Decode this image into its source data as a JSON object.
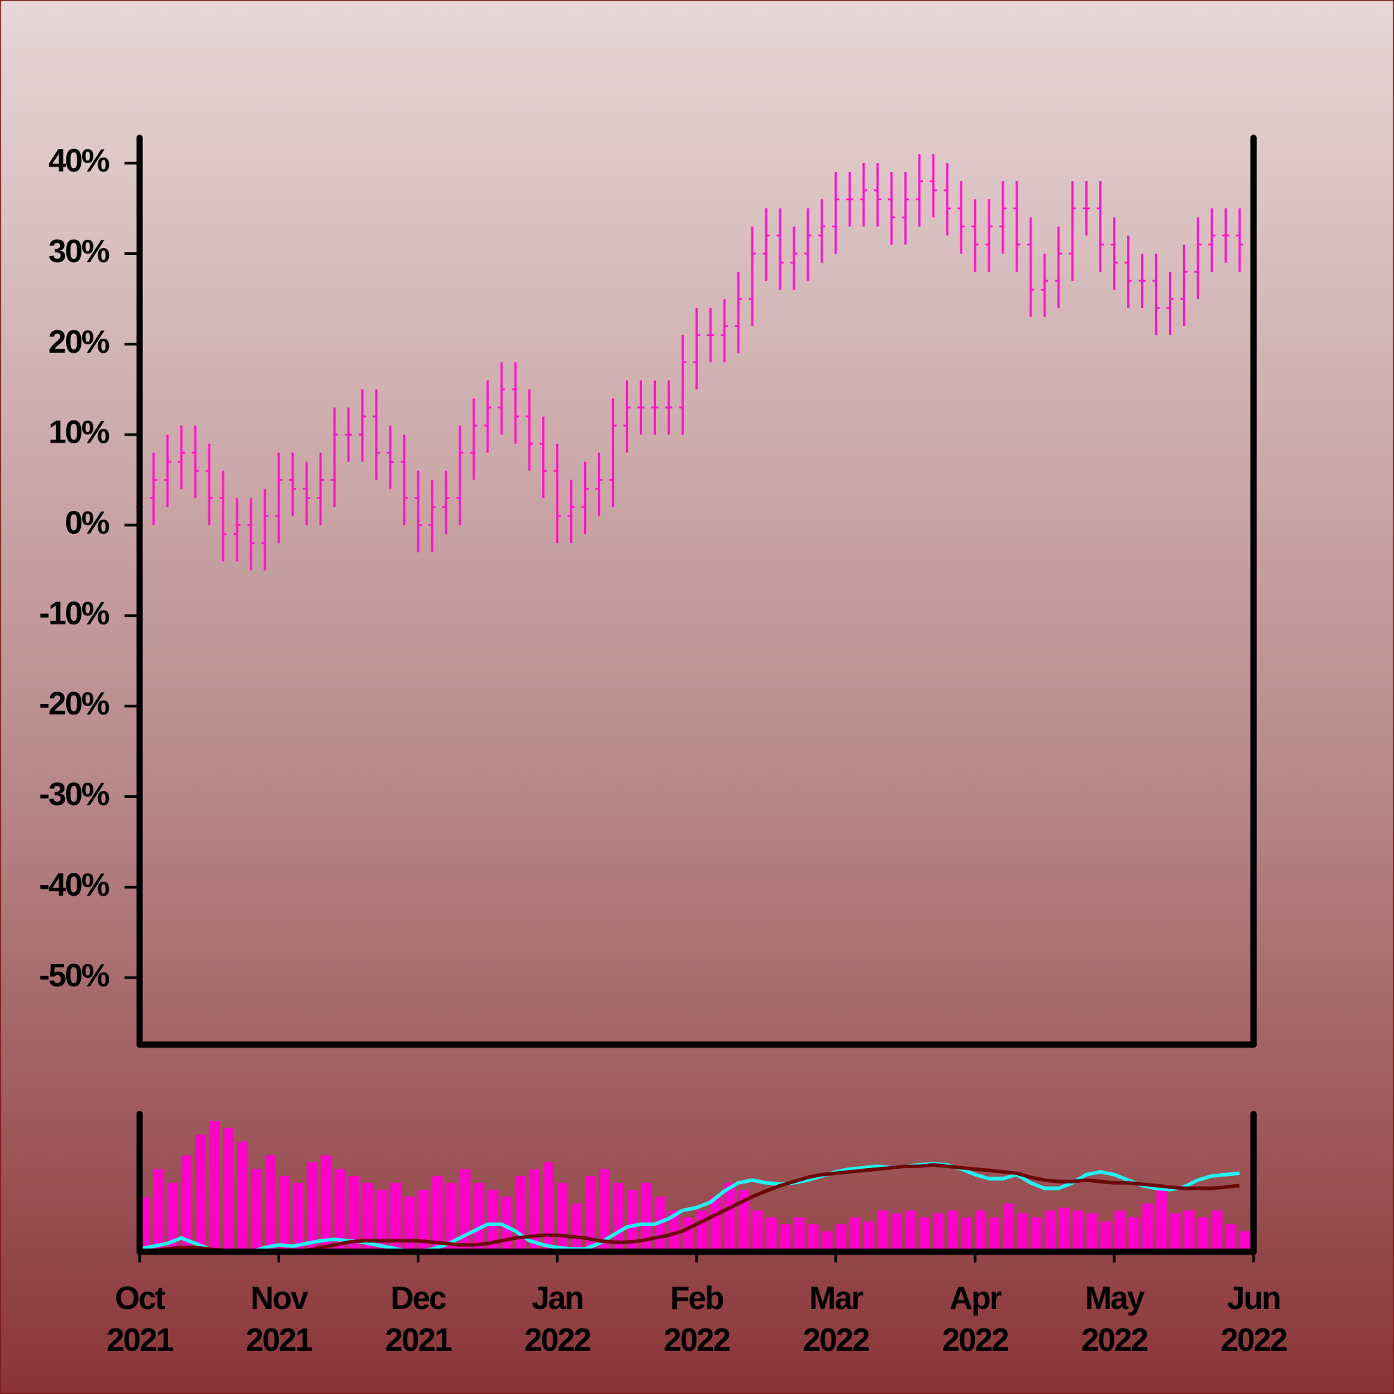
{
  "chart_data": [
    {
      "type": "ohlc",
      "color": "#ff14c8",
      "x": [
        0,
        0.1,
        0.2,
        0.3,
        0.4,
        0.5,
        0.6,
        0.7,
        0.8,
        0.9,
        1,
        1.1,
        1.2,
        1.3,
        1.4,
        1.5,
        1.6,
        1.7,
        1.8,
        1.9,
        2,
        2.1,
        2.2,
        2.3,
        2.4,
        2.5,
        2.6,
        2.7,
        2.8,
        2.9,
        3,
        3.1,
        3.2,
        3.3,
        3.4,
        3.5,
        3.6,
        3.7,
        3.8,
        3.9,
        4,
        4.1,
        4.2,
        4.3,
        4.4,
        4.5,
        4.6,
        4.7,
        4.8,
        4.9,
        5,
        5.1,
        5.2,
        5.3,
        5.4,
        5.5,
        5.6,
        5.7,
        5.8,
        5.9,
        6,
        6.1,
        6.2,
        6.3,
        6.4,
        6.5,
        6.6,
        6.7,
        6.8,
        6.9,
        7,
        7.1,
        7.2,
        7.3,
        7.4,
        7.5,
        7.6,
        7.7,
        7.8,
        7.9
      ],
      "xlim": [
        0,
        8
      ],
      "open": [
        2,
        3,
        5,
        7,
        8,
        6,
        3,
        -1,
        0,
        -2,
        1,
        5,
        4,
        3,
        5,
        10,
        10,
        12,
        8,
        7,
        3,
        0,
        2,
        3,
        8,
        11,
        13,
        15,
        12,
        9,
        6,
        1,
        2,
        4,
        5,
        11,
        13,
        13,
        13,
        13,
        18,
        21,
        21,
        22,
        25,
        30,
        32,
        29,
        30,
        32,
        33,
        36,
        36,
        37,
        36,
        34,
        36,
        38,
        37,
        35,
        33,
        31,
        33,
        35,
        31,
        26,
        27,
        30,
        35,
        35,
        31,
        29,
        27,
        27,
        24,
        25,
        28,
        31,
        32,
        32
      ],
      "high": [
        6,
        8,
        10,
        11,
        11,
        9,
        6,
        3,
        3,
        4,
        8,
        8,
        7,
        8,
        13,
        13,
        15,
        15,
        11,
        10,
        6,
        5,
        6,
        11,
        14,
        16,
        18,
        18,
        15,
        12,
        9,
        5,
        7,
        8,
        14,
        16,
        16,
        16,
        16,
        21,
        24,
        24,
        25,
        28,
        33,
        35,
        35,
        33,
        35,
        36,
        39,
        39,
        40,
        40,
        39,
        39,
        41,
        41,
        40,
        38,
        36,
        36,
        38,
        38,
        34,
        30,
        33,
        38,
        38,
        38,
        34,
        32,
        30,
        30,
        28,
        31,
        34,
        35,
        35,
        35
      ],
      "low": [
        -1,
        0,
        2,
        4,
        3,
        0,
        -4,
        -4,
        -5,
        -5,
        -2,
        1,
        0,
        0,
        2,
        7,
        7,
        5,
        4,
        0,
        -3,
        -3,
        -1,
        0,
        5,
        8,
        10,
        9,
        6,
        3,
        -2,
        -2,
        -1,
        1,
        2,
        8,
        10,
        10,
        10,
        10,
        15,
        18,
        18,
        19,
        22,
        27,
        26,
        26,
        27,
        29,
        30,
        33,
        33,
        33,
        31,
        31,
        33,
        34,
        32,
        30,
        28,
        28,
        30,
        28,
        23,
        23,
        24,
        27,
        32,
        28,
        26,
        24,
        24,
        21,
        21,
        22,
        25,
        28,
        29,
        28
      ],
      "close": [
        3,
        5,
        7,
        8,
        6,
        3,
        -1,
        0,
        -2,
        1,
        5,
        4,
        3,
        5,
        10,
        10,
        12,
        8,
        7,
        3,
        0,
        2,
        3,
        8,
        11,
        13,
        15,
        12,
        9,
        6,
        1,
        2,
        4,
        5,
        11,
        13,
        13,
        13,
        13,
        18,
        21,
        21,
        22,
        25,
        30,
        32,
        29,
        30,
        32,
        33,
        36,
        36,
        37,
        36,
        34,
        36,
        38,
        37,
        35,
        33,
        31,
        33,
        35,
        31,
        26,
        27,
        30,
        35,
        35,
        31,
        29,
        27,
        27,
        24,
        25,
        28,
        31,
        32,
        32,
        31
      ],
      "ylim": [
        -57.4,
        42.8
      ],
      "yticks": [
        {
          "value": -50,
          "label": "-50%"
        },
        {
          "value": -40,
          "label": "-40%"
        },
        {
          "value": -30,
          "label": "-30%"
        },
        {
          "value": -20,
          "label": "-20%"
        },
        {
          "value": -10,
          "label": "-10%"
        },
        {
          "value": 0,
          "label": "0%"
        },
        {
          "value": 10,
          "label": "10%"
        },
        {
          "value": 20,
          "label": "20%"
        },
        {
          "value": 30,
          "label": "30%"
        },
        {
          "value": 40,
          "label": "40%"
        }
      ]
    },
    {
      "type": "volume",
      "color": "#ff00c8",
      "values": [
        40,
        60,
        50,
        70,
        85,
        95,
        90,
        80,
        60,
        70,
        55,
        50,
        65,
        70,
        60,
        55,
        50,
        45,
        50,
        40,
        45,
        55,
        50,
        60,
        50,
        45,
        40,
        55,
        60,
        65,
        50,
        35,
        55,
        60,
        50,
        45,
        50,
        40,
        30,
        25,
        30,
        40,
        50,
        45,
        30,
        25,
        20,
        25,
        20,
        15,
        20,
        25,
        22,
        30,
        28,
        30,
        25,
        28,
        30,
        25,
        30,
        25,
        35,
        28,
        25,
        30,
        32,
        30,
        28,
        22,
        30,
        25,
        35,
        45,
        28,
        30,
        25,
        30,
        20,
        15
      ],
      "ylim": [
        0,
        100
      ],
      "series": [
        {
          "color": "#22f4f4",
          "values": [
            2,
            4,
            6,
            10,
            6,
            2,
            0,
            1,
            0,
            3,
            5,
            4,
            6,
            8,
            9,
            8,
            7,
            5,
            3,
            1,
            0,
            2,
            5,
            10,
            15,
            20,
            20,
            15,
            8,
            5,
            3,
            2,
            2,
            6,
            12,
            18,
            20,
            20,
            24,
            30,
            32,
            36,
            44,
            50,
            52,
            50,
            49,
            50,
            52,
            55,
            58,
            60,
            61,
            62,
            61,
            62,
            63,
            64,
            63,
            60,
            56,
            53,
            53,
            56,
            50,
            46,
            46,
            50,
            56,
            58,
            56,
            52,
            48,
            46,
            45,
            47,
            52,
            55,
            56,
            57
          ]
        },
        {
          "color": "#6b0808",
          "values": [
            0,
            1,
            2,
            3,
            3,
            2,
            1,
            0,
            0,
            0,
            0,
            0,
            1,
            3,
            5,
            7,
            8,
            8,
            8,
            8,
            8,
            7,
            6,
            5,
            5,
            6,
            8,
            10,
            11,
            12,
            12,
            11,
            10,
            8,
            7,
            7,
            8,
            10,
            12,
            15,
            20,
            25,
            30,
            35,
            40,
            44,
            48,
            51,
            54,
            56,
            57,
            58,
            59,
            60,
            61,
            62,
            62,
            63,
            62,
            61,
            60,
            59,
            58,
            57,
            54,
            52,
            51,
            51,
            52,
            51,
            50,
            50,
            49,
            48,
            47,
            46,
            46,
            46,
            47,
            48
          ]
        }
      ],
      "xticks": [
        {
          "value": 0,
          "label": "Oct 2021"
        },
        {
          "value": 1,
          "label": "Nov 2021"
        },
        {
          "value": 2,
          "label": "Dec 2021"
        },
        {
          "value": 3,
          "label": "Jan 2022"
        },
        {
          "value": 4,
          "label": "Feb 2022"
        },
        {
          "value": 5,
          "label": "Mar 2022"
        },
        {
          "value": 6,
          "label": "Apr 2022"
        },
        {
          "value": 7,
          "label": "May 2022"
        },
        {
          "value": 8,
          "label": "Jun 2022"
        }
      ]
    }
  ]
}
